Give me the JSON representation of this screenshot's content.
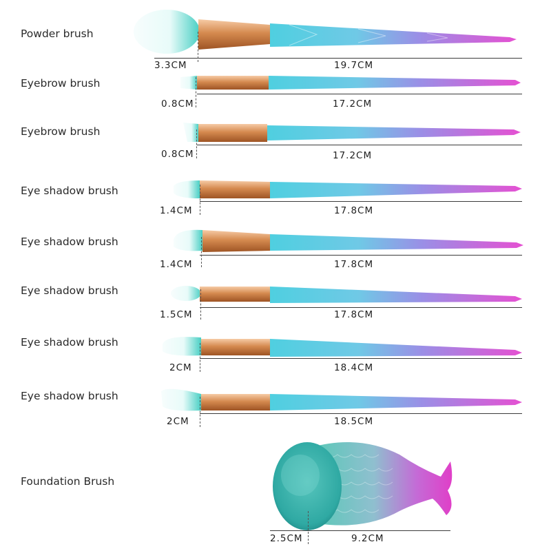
{
  "brushes": [
    {
      "name": "Powder brush",
      "head_length": "3.3CM",
      "handle_length": "19.7CM"
    },
    {
      "name": "Eyebrow brush",
      "head_length": "0.8CM",
      "handle_length": "17.2CM"
    },
    {
      "name": "Eyebrow brush",
      "head_length": "0.8CM",
      "handle_length": "17.2CM"
    },
    {
      "name": "Eye shadow brush",
      "head_length": "1.4CM",
      "handle_length": "17.8CM"
    },
    {
      "name": "Eye shadow brush",
      "head_length": "1.4CM",
      "handle_length": "17.8CM"
    },
    {
      "name": "Eye shadow brush",
      "head_length": "1.5CM",
      "handle_length": "17.8CM"
    },
    {
      "name": "Eye shadow brush",
      "head_length": "2CM",
      "handle_length": "18.4CM"
    },
    {
      "name": "Eye shadow brush",
      "head_length": "2CM",
      "handle_length": "18.5CM"
    }
  ],
  "foundation": {
    "name": "Foundation Brush",
    "head_length": "2.5CM",
    "body_length": "9.2CM"
  },
  "colors": {
    "bristle_tip": "#f4fbfb",
    "bristle_base": "#5fd6cf",
    "ferrule_light": "#f5c9a3",
    "ferrule_dark": "#b8672f",
    "handle_start": "#5fd2df",
    "handle_mid": "#8a8ee8",
    "handle_end": "#e04fd0"
  }
}
